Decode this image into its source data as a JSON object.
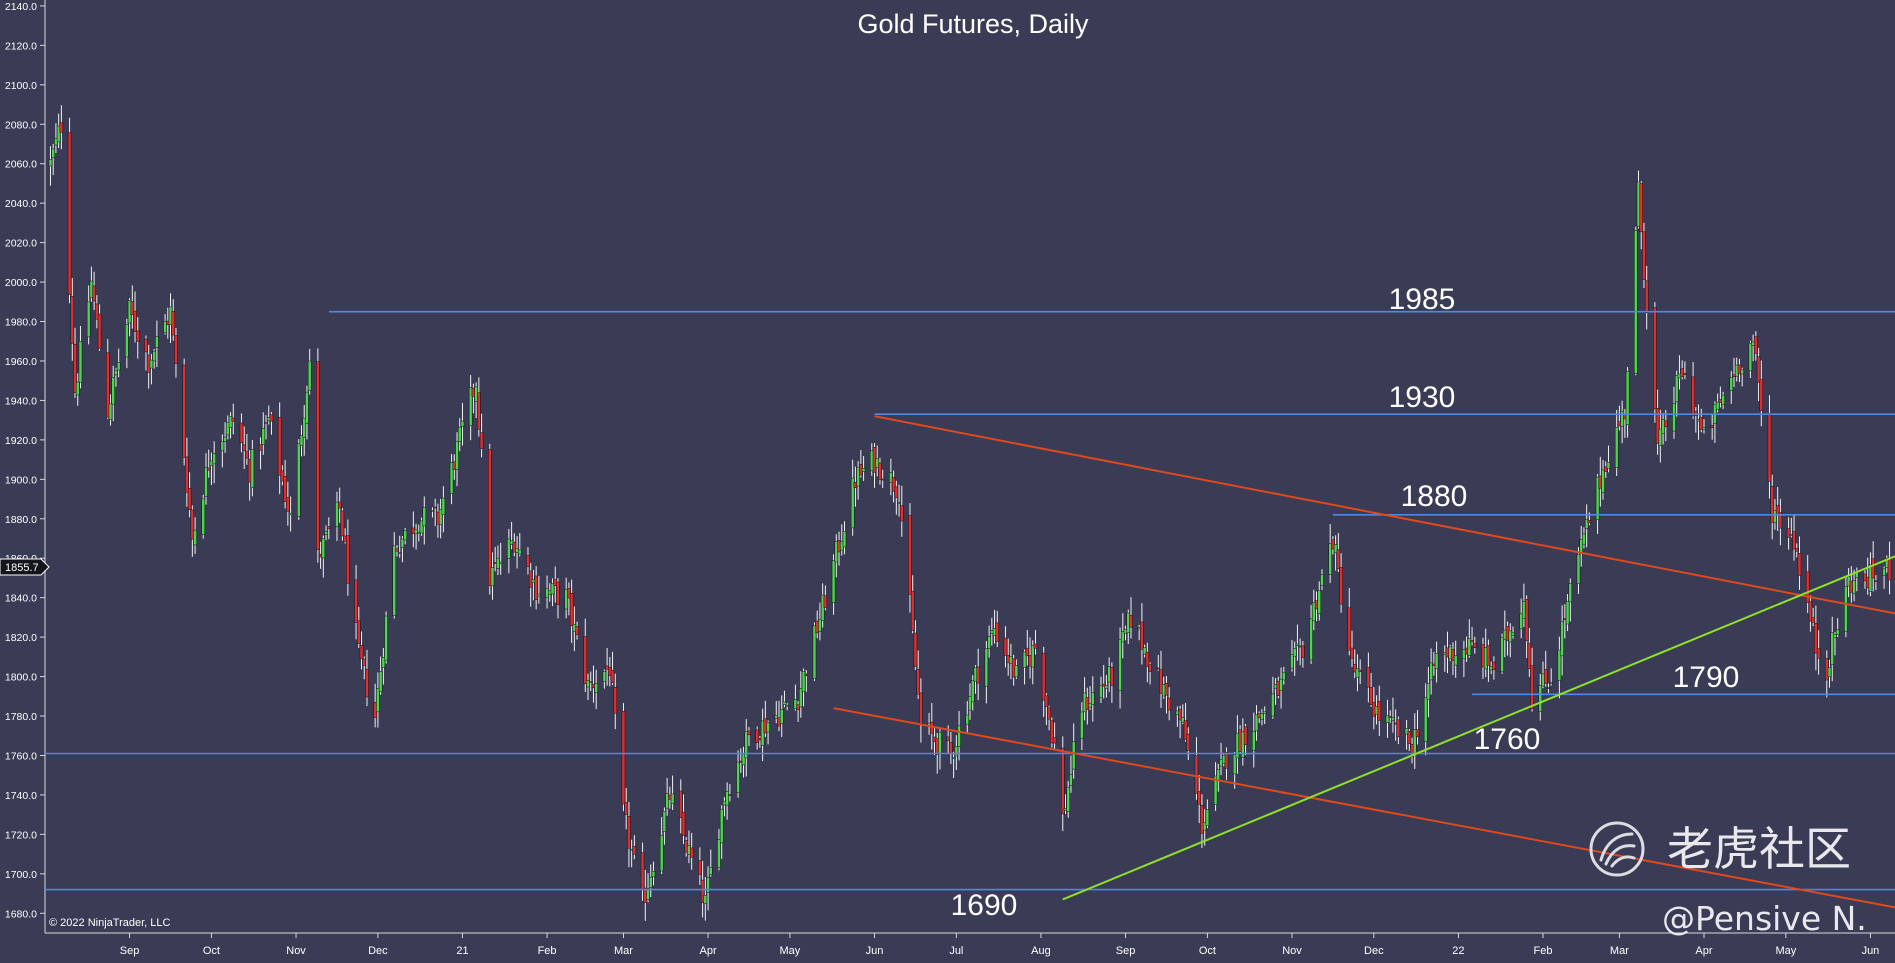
{
  "chart_data": {
    "type": "candlestick",
    "title": "Gold Futures, Daily",
    "copyright": "© 2022 NinjaTrader, LLC",
    "watermark": {
      "brand": "老虎社区",
      "author": "@Pensive N."
    },
    "y_axis": {
      "range": [
        1670,
        2143
      ],
      "ticks": [
        1680,
        1700,
        1720,
        1740,
        1760,
        1780,
        1800,
        1820,
        1840,
        1860,
        1880,
        1900,
        1920,
        1940,
        1960,
        1980,
        2000,
        2020,
        2040,
        2060,
        2080,
        2100,
        2120,
        2140
      ],
      "tick_labels": [
        "1680.0",
        "1700.0",
        "1720.0",
        "1740.0",
        "1760.0",
        "1780.0",
        "1800.0",
        "1820.0",
        "1840.0",
        "1860.0",
        "1880.0",
        "1900.0",
        "1920.0",
        "1940.0",
        "1960.0",
        "1980.0",
        "2000.0",
        "2020.0",
        "2040.0",
        "2060.0",
        "2080.0",
        "2100.0",
        "2120.0",
        "2140.0"
      ],
      "last_price": 1855.7,
      "last_price_label": "1855.7"
    },
    "x_axis": {
      "range": [
        "2020-08-01",
        "2022-06-10"
      ],
      "ticks": [
        {
          "date": "2020-09-01",
          "label": "Sep"
        },
        {
          "date": "2020-10-01",
          "label": "Oct"
        },
        {
          "date": "2020-11-01",
          "label": "Nov"
        },
        {
          "date": "2020-12-01",
          "label": "Dec"
        },
        {
          "date": "2021-01-01",
          "label": "21"
        },
        {
          "date": "2021-02-01",
          "label": "Feb"
        },
        {
          "date": "2021-03-01",
          "label": "Mar"
        },
        {
          "date": "2021-04-01",
          "label": "Apr"
        },
        {
          "date": "2021-05-01",
          "label": "May"
        },
        {
          "date": "2021-06-01",
          "label": "Jun"
        },
        {
          "date": "2021-07-01",
          "label": "Jul"
        },
        {
          "date": "2021-08-01",
          "label": "Aug"
        },
        {
          "date": "2021-09-01",
          "label": "Sep"
        },
        {
          "date": "2021-10-01",
          "label": "Oct"
        },
        {
          "date": "2021-11-01",
          "label": "Nov"
        },
        {
          "date": "2021-12-01",
          "label": "Dec"
        },
        {
          "date": "2022-01-01",
          "label": "22"
        },
        {
          "date": "2022-02-01",
          "label": "Feb"
        },
        {
          "date": "2022-03-01",
          "label": "Mar"
        },
        {
          "date": "2022-04-01",
          "label": "Apr"
        },
        {
          "date": "2022-05-01",
          "label": "May"
        },
        {
          "date": "2022-06-01",
          "label": "Jun"
        }
      ]
    },
    "colors": {
      "background": "#3a3b55",
      "up": "#4cd64c",
      "down": "#e02f2f",
      "wick": "#f2f2f2",
      "level": "#4c88e8",
      "channel": "#e0481e",
      "support_trend": "#8ee02a"
    },
    "price_path": [
      {
        "date": "2020-08-03",
        "close": 2060
      },
      {
        "date": "2020-08-07",
        "close": 2080
      },
      {
        "date": "2020-08-12",
        "close": 1945
      },
      {
        "date": "2020-08-18",
        "close": 2000
      },
      {
        "date": "2020-08-24",
        "close": 1935
      },
      {
        "date": "2020-09-01",
        "close": 1985
      },
      {
        "date": "2020-09-08",
        "close": 1960
      },
      {
        "date": "2020-09-16",
        "close": 1985
      },
      {
        "date": "2020-09-24",
        "close": 1870
      },
      {
        "date": "2020-10-01",
        "close": 1915
      },
      {
        "date": "2020-10-09",
        "close": 1930
      },
      {
        "date": "2020-10-15",
        "close": 1905
      },
      {
        "date": "2020-10-22",
        "close": 1930
      },
      {
        "date": "2020-10-30",
        "close": 1880
      },
      {
        "date": "2020-11-06",
        "close": 1960
      },
      {
        "date": "2020-11-09",
        "close": 1860
      },
      {
        "date": "2020-11-17",
        "close": 1885
      },
      {
        "date": "2020-11-24",
        "close": 1810
      },
      {
        "date": "2020-11-30",
        "close": 1780
      },
      {
        "date": "2020-12-07",
        "close": 1865
      },
      {
        "date": "2020-12-16",
        "close": 1880
      },
      {
        "date": "2020-12-23",
        "close": 1880
      },
      {
        "date": "2021-01-06",
        "close": 1950
      },
      {
        "date": "2021-01-11",
        "close": 1850
      },
      {
        "date": "2021-01-20",
        "close": 1870
      },
      {
        "date": "2021-01-28",
        "close": 1845
      },
      {
        "date": "2021-02-08",
        "close": 1840
      },
      {
        "date": "2021-02-16",
        "close": 1795
      },
      {
        "date": "2021-02-24",
        "close": 1805
      },
      {
        "date": "2021-03-01",
        "close": 1730
      },
      {
        "date": "2021-03-08",
        "close": 1685
      },
      {
        "date": "2021-03-18",
        "close": 1740
      },
      {
        "date": "2021-03-31",
        "close": 1685
      },
      {
        "date": "2021-04-07",
        "close": 1740
      },
      {
        "date": "2021-04-16",
        "close": 1770
      },
      {
        "date": "2021-04-26",
        "close": 1780
      },
      {
        "date": "2021-05-04",
        "close": 1790
      },
      {
        "date": "2021-05-14",
        "close": 1840
      },
      {
        "date": "2021-05-25",
        "close": 1900
      },
      {
        "date": "2021-06-01",
        "close": 1910
      },
      {
        "date": "2021-06-10",
        "close": 1895
      },
      {
        "date": "2021-06-18",
        "close": 1775
      },
      {
        "date": "2021-06-29",
        "close": 1760
      },
      {
        "date": "2021-07-08",
        "close": 1800
      },
      {
        "date": "2021-07-15",
        "close": 1825
      },
      {
        "date": "2021-07-23",
        "close": 1800
      },
      {
        "date": "2021-07-30",
        "close": 1815
      },
      {
        "date": "2021-08-06",
        "close": 1765
      },
      {
        "date": "2021-08-09",
        "close": 1728
      },
      {
        "date": "2021-08-16",
        "close": 1785
      },
      {
        "date": "2021-08-27",
        "close": 1800
      },
      {
        "date": "2021-09-03",
        "close": 1830
      },
      {
        "date": "2021-09-14",
        "close": 1795
      },
      {
        "date": "2021-09-22",
        "close": 1775
      },
      {
        "date": "2021-09-29",
        "close": 1725
      },
      {
        "date": "2021-10-08",
        "close": 1760
      },
      {
        "date": "2021-10-20",
        "close": 1780
      },
      {
        "date": "2021-10-28",
        "close": 1795
      },
      {
        "date": "2021-11-05",
        "close": 1815
      },
      {
        "date": "2021-11-16",
        "close": 1870
      },
      {
        "date": "2021-11-23",
        "close": 1805
      },
      {
        "date": "2021-12-03",
        "close": 1780
      },
      {
        "date": "2021-12-15",
        "close": 1765
      },
      {
        "date": "2021-12-24",
        "close": 1810
      },
      {
        "date": "2022-01-05",
        "close": 1815
      },
      {
        "date": "2022-01-14",
        "close": 1805
      },
      {
        "date": "2022-01-25",
        "close": 1840
      },
      {
        "date": "2022-01-28",
        "close": 1790
      },
      {
        "date": "2022-02-04",
        "close": 1800
      },
      {
        "date": "2022-02-14",
        "close": 1860
      },
      {
        "date": "2022-02-24",
        "close": 1910
      },
      {
        "date": "2022-03-03",
        "close": 1935
      },
      {
        "date": "2022-03-08",
        "close": 2045
      },
      {
        "date": "2022-03-15",
        "close": 1915
      },
      {
        "date": "2022-03-24",
        "close": 1955
      },
      {
        "date": "2022-04-01",
        "close": 1920
      },
      {
        "date": "2022-04-12",
        "close": 1955
      },
      {
        "date": "2022-04-19",
        "close": 1970
      },
      {
        "date": "2022-04-26",
        "close": 1885
      },
      {
        "date": "2022-05-04",
        "close": 1870
      },
      {
        "date": "2022-05-12",
        "close": 1815
      },
      {
        "date": "2022-05-16",
        "close": 1805
      },
      {
        "date": "2022-05-24",
        "close": 1848
      },
      {
        "date": "2022-06-01",
        "close": 1850
      },
      {
        "date": "2022-06-08",
        "close": 1855
      }
    ],
    "levels": [
      {
        "value": 1985,
        "label": "1985",
        "from": "2020-11-13"
      },
      {
        "value": 1933,
        "label": "1930",
        "from": "2021-06-01"
      },
      {
        "value": 1882,
        "label": "1880",
        "from": "2021-11-16"
      },
      {
        "value": 1791,
        "label": "1790",
        "from": "2022-01-06"
      },
      {
        "value": 1761,
        "label": "1760",
        "from": "2020-08-01"
      },
      {
        "value": 1692,
        "label": "1690",
        "from": "2020-08-01"
      }
    ],
    "trendlines": [
      {
        "name": "channel-upper",
        "color": "channel",
        "from": {
          "date": "2021-06-01",
          "value": 1932
        },
        "to": {
          "date": "2022-06-10",
          "value": 1832
        }
      },
      {
        "name": "channel-lower",
        "color": "channel",
        "from": {
          "date": "2021-05-17",
          "value": 1784
        },
        "to": {
          "date": "2022-06-10",
          "value": 1683
        }
      },
      {
        "name": "rising-support",
        "color": "support_trend",
        "from": {
          "date": "2021-08-09",
          "value": 1687
        },
        "to": {
          "date": "2022-06-10",
          "value": 1861
        }
      }
    ]
  }
}
